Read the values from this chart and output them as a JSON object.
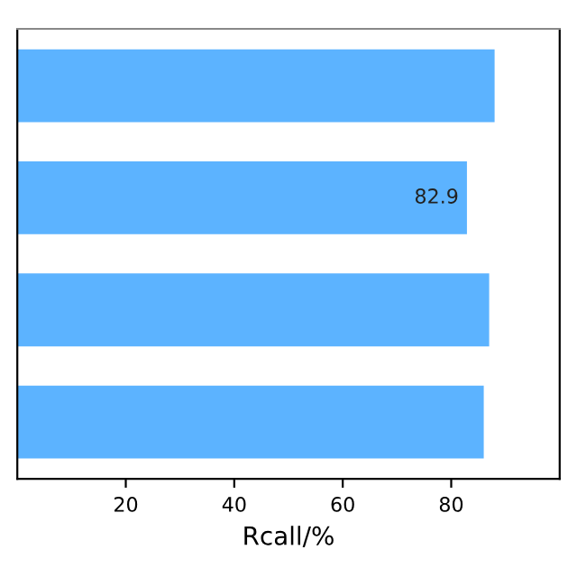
{
  "chart_data": {
    "type": "bar",
    "orientation": "horizontal",
    "xlabel": "Rcall/%",
    "categories": [
      null,
      null,
      null,
      null
    ],
    "values": [
      88,
      82.9,
      87,
      86
    ],
    "value_labels": [
      null,
      "82.9",
      null,
      null
    ],
    "color": "#5cb3ff",
    "xlim": [
      0,
      100
    ],
    "xticks": [
      20,
      40,
      60,
      80
    ],
    "tick_labels": "x",
    "grid": false
  }
}
